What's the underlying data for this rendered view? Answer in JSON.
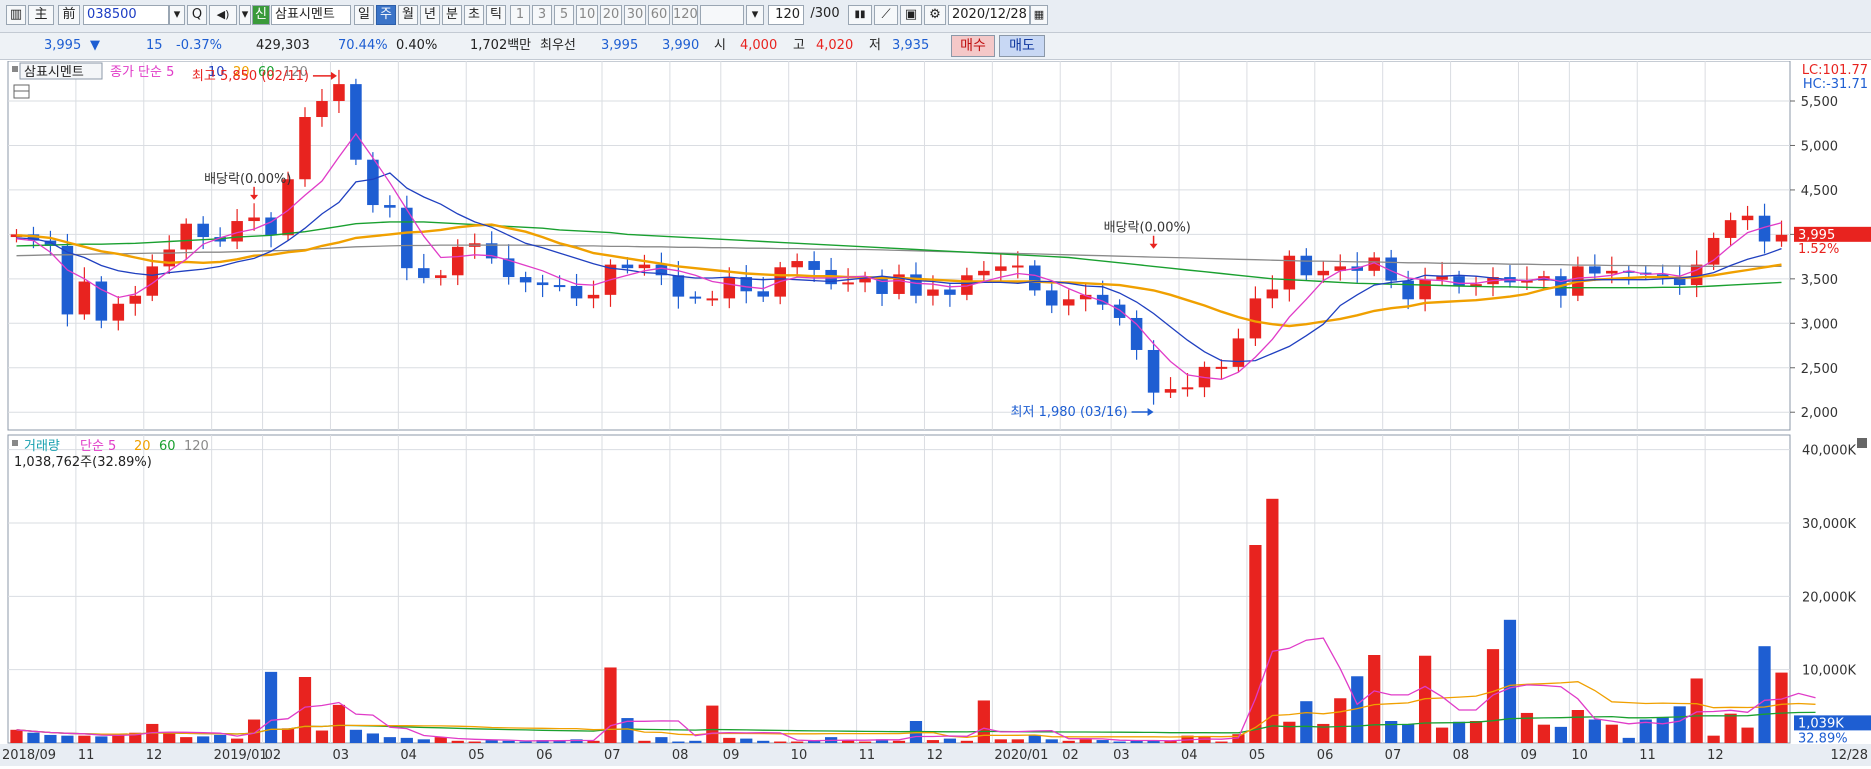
{
  "toolbar": {
    "b_menu": "▥",
    "b_ju": "主",
    "b_jeon": "前",
    "code": "038500",
    "b_search": "Q",
    "b_sound": "◀)",
    "b_new": "신",
    "name": "삼표시멘트",
    "period_day": "일",
    "period_week": "주",
    "period_month": "월",
    "period_year": "년",
    "period_min": "분",
    "period_sec": "초",
    "period_tick": "틱",
    "intervals": [
      "1",
      "3",
      "5",
      "10",
      "20",
      "30",
      "60",
      "120"
    ],
    "count": "120",
    "count_total": "/300",
    "date": "2020/12/28"
  },
  "info": {
    "price": "3,995",
    "change": "15",
    "change_pct": "-0.37%",
    "volume": "429,303",
    "vol_ratio": "70.44%",
    "turnover": "0.40%",
    "amount": "1,702백만",
    "best_label": "최우선",
    "best_ask": "3,995",
    "best_bid": "3,990",
    "open_label": "시",
    "open": "4,000",
    "high_label": "고",
    "high": "4,020",
    "low_label": "저",
    "low": "3,935",
    "buy_label": "매수",
    "sell_label": "매도"
  },
  "colors": {
    "up": "#e8231f",
    "down": "#1e5ed2",
    "ma5": "#e03cc8",
    "ma10": "#2040c0",
    "ma20": "#f0a000",
    "ma60": "#1aa030",
    "ma120": "#8a8a8a"
  },
  "chart_data": [
    {
      "type": "candlestick",
      "title": "삼표시멘트",
      "legend": [
        "종가 단순 5",
        "10",
        "20",
        "60",
        "120"
      ],
      "ylim": [
        1800,
        5950
      ],
      "y_ticks": [
        2000,
        2500,
        3000,
        3500,
        4000,
        4500,
        5000,
        5500
      ],
      "y_tick_labels": [
        "2,000",
        "2,500",
        "3,000",
        "3,500",
        "4,000",
        "4,500",
        "5,000",
        "5,500"
      ],
      "x_labels": [
        "2018/09",
        "11",
        "12",
        "2019/01",
        "02",
        "03",
        "04",
        "05",
        "06",
        "07",
        "08",
        "09",
        "10",
        "11",
        "12",
        "2020/01",
        "02",
        "03",
        "04",
        "05",
        "06",
        "07",
        "08",
        "09",
        "10",
        "11",
        "12",
        "12/28"
      ],
      "last_price_label": "3,995",
      "last_pct_label": "1.52%",
      "lc_label": "LC:101.77",
      "hc_label": "HC:-31.71",
      "annotations": {
        "high": "최고 5,850 (02/11)",
        "low": "최저 1,980 (03/16)",
        "div1": "배당락(0.00%)",
        "div2": "배당락(0.00%)"
      },
      "close": [
        4000,
        3930,
        3870,
        3100,
        3470,
        3030,
        3220,
        3310,
        3640,
        3830,
        4120,
        3970,
        3920,
        4150,
        4190,
        3990,
        4620,
        5320,
        5500,
        5690,
        4840,
        4330,
        4300,
        3620,
        3510,
        3540,
        3860,
        3900,
        3730,
        3520,
        3460,
        3430,
        3420,
        3280,
        3320,
        3660,
        3620,
        3660,
        3540,
        3300,
        3280,
        3280,
        3520,
        3360,
        3300,
        3630,
        3700,
        3600,
        3440,
        3460,
        3520,
        3330,
        3550,
        3310,
        3380,
        3320,
        3540,
        3590,
        3640,
        3650,
        3370,
        3200,
        3270,
        3320,
        3210,
        3060,
        2700,
        2220,
        2260,
        2280,
        2510,
        2510,
        2830,
        3280,
        3380,
        3760,
        3540,
        3590,
        3640,
        3590,
        3740,
        3480,
        3270,
        3490,
        3530,
        3420,
        3440,
        3520,
        3460,
        3480,
        3530,
        3310,
        3640,
        3560,
        3590,
        3570,
        3550,
        3520,
        3430,
        3660,
        3960,
        4160,
        4210,
        3920,
        3995
      ],
      "volume_k": [
        1800,
        1400,
        1100,
        1000,
        1000,
        900,
        1200,
        1400,
        2600,
        1300,
        800,
        900,
        1100,
        600,
        3200,
        9700,
        2000,
        9000,
        1700,
        5200,
        1800,
        1300,
        800,
        700,
        500,
        800,
        300,
        200,
        400,
        300,
        200,
        400,
        300,
        500,
        300,
        10300,
        3400,
        300,
        800,
        200,
        300,
        5100,
        700,
        600,
        300,
        200,
        200,
        300,
        800,
        400,
        200,
        500,
        300,
        3000,
        400,
        600,
        300,
        5800,
        500,
        500,
        1100,
        500,
        300,
        500,
        400,
        200,
        300,
        300,
        300,
        1000,
        800,
        200,
        1200,
        27000,
        33300,
        2900,
        5700,
        2600,
        6100,
        9100,
        12000,
        3000,
        2600,
        11900,
        2100,
        2900,
        3000,
        12800,
        16800,
        4100,
        2500,
        2200,
        4500,
        3200,
        2500,
        700,
        3200,
        3500,
        5000,
        8800,
        1000,
        4000,
        2100,
        13200,
        9600,
        4900,
        1039
      ],
      "ma5": [
        3950,
        3930,
        3800,
        3600,
        3500,
        3380,
        3290,
        3330,
        3450,
        3590,
        3720,
        3890,
        3960,
        4020,
        4060,
        4140,
        4270,
        4440,
        4600,
        4870,
        5130,
        4860,
        4580,
        4280,
        3980,
        3740,
        3750,
        3770,
        3760,
        3710,
        3650,
        3590,
        3510,
        3440,
        3430,
        3490,
        3540,
        3590,
        3620,
        3590,
        3540,
        3470,
        3440,
        3410,
        3390,
        3470,
        3520,
        3510,
        3510,
        3520,
        3530,
        3470,
        3480,
        3450,
        3440,
        3410,
        3420,
        3470,
        3520,
        3560,
        3540,
        3480,
        3390,
        3310,
        3250,
        3150,
        2990,
        2770,
        2570,
        2420,
        2390,
        2370,
        2450,
        2620,
        2820,
        3070,
        3270,
        3480,
        3590,
        3620,
        3680,
        3590,
        3510,
        3490,
        3480,
        3450,
        3450,
        3480,
        3490,
        3480,
        3510,
        3470,
        3510,
        3520,
        3540,
        3590,
        3550,
        3560,
        3530,
        3600,
        3710,
        3870,
        4020,
        4080,
        4130
      ],
      "ma10": [
        3960,
        3950,
        3910,
        3800,
        3740,
        3650,
        3590,
        3560,
        3540,
        3570,
        3590,
        3610,
        3640,
        3690,
        3730,
        3810,
        3930,
        4070,
        4230,
        4360,
        4590,
        4620,
        4690,
        4520,
        4420,
        4340,
        4230,
        4140,
        4080,
        3990,
        3900,
        3850,
        3790,
        3730,
        3670,
        3620,
        3600,
        3570,
        3560,
        3530,
        3510,
        3510,
        3520,
        3500,
        3490,
        3500,
        3490,
        3480,
        3470,
        3490,
        3510,
        3530,
        3510,
        3480,
        3470,
        3450,
        3450,
        3460,
        3460,
        3450,
        3470,
        3470,
        3450,
        3420,
        3410,
        3340,
        3240,
        3110,
        2960,
        2810,
        2680,
        2580,
        2570,
        2580,
        2660,
        2740,
        2860,
        2990,
        3200,
        3320,
        3430,
        3460,
        3480,
        3540,
        3530,
        3540,
        3530,
        3510,
        3490,
        3480,
        3500,
        3470,
        3480,
        3490,
        3490,
        3490,
        3490,
        3500,
        3510,
        3530,
        3570,
        3650,
        3720,
        3770,
        3840
      ],
      "ma20": [
        3990,
        3980,
        3960,
        3910,
        3860,
        3810,
        3780,
        3740,
        3700,
        3680,
        3690,
        3680,
        3690,
        3720,
        3760,
        3770,
        3800,
        3820,
        3870,
        3910,
        3960,
        3980,
        4000,
        4020,
        4030,
        4050,
        4080,
        4100,
        4110,
        4070,
        4030,
        3970,
        3900,
        3850,
        3790,
        3760,
        3730,
        3700,
        3670,
        3640,
        3620,
        3600,
        3580,
        3560,
        3550,
        3540,
        3540,
        3530,
        3530,
        3520,
        3520,
        3510,
        3510,
        3500,
        3490,
        3480,
        3470,
        3470,
        3470,
        3470,
        3470,
        3460,
        3460,
        3450,
        3440,
        3430,
        3400,
        3370,
        3320,
        3260,
        3200,
        3130,
        3070,
        3020,
        2990,
        2970,
        2990,
        3020,
        3050,
        3090,
        3140,
        3170,
        3190,
        3230,
        3240,
        3250,
        3260,
        3280,
        3300,
        3330,
        3380,
        3420,
        3470,
        3490,
        3500,
        3510,
        3520,
        3520,
        3510,
        3520,
        3540,
        3570,
        3600,
        3630,
        3660
      ],
      "ma60": [
        3870,
        3875,
        3880,
        3885,
        3890,
        3890,
        3895,
        3900,
        3910,
        3920,
        3930,
        3940,
        3950,
        3970,
        3980,
        3990,
        4010,
        4030,
        4060,
        4090,
        4120,
        4130,
        4140,
        4140,
        4140,
        4130,
        4120,
        4110,
        4100,
        4090,
        4080,
        4070,
        4050,
        4040,
        4030,
        4020,
        4000,
        3990,
        3980,
        3970,
        3960,
        3950,
        3940,
        3930,
        3920,
        3910,
        3900,
        3890,
        3880,
        3870,
        3860,
        3850,
        3840,
        3830,
        3820,
        3810,
        3800,
        3790,
        3780,
        3770,
        3760,
        3750,
        3740,
        3720,
        3700,
        3680,
        3660,
        3640,
        3620,
        3600,
        3580,
        3560,
        3540,
        3520,
        3500,
        3490,
        3480,
        3470,
        3460,
        3450,
        3445,
        3440,
        3435,
        3430,
        3425,
        3420,
        3415,
        3410,
        3410,
        3405,
        3400,
        3400,
        3400,
        3400,
        3400,
        3400,
        3400,
        3405,
        3405,
        3410,
        3420,
        3430,
        3440,
        3450,
        3460
      ],
      "ma120": [
        3760,
        3765,
        3770,
        3770,
        3775,
        3780,
        3780,
        3785,
        3790,
        3790,
        3795,
        3800,
        3800,
        3805,
        3810,
        3815,
        3820,
        3830,
        3840,
        3850,
        3860,
        3865,
        3870,
        3875,
        3875,
        3880,
        3880,
        3880,
        3880,
        3880,
        3880,
        3875,
        3875,
        3870,
        3870,
        3865,
        3865,
        3860,
        3860,
        3855,
        3855,
        3850,
        3850,
        3845,
        3845,
        3840,
        3840,
        3835,
        3835,
        3830,
        3830,
        3825,
        3820,
        3815,
        3810,
        3805,
        3800,
        3795,
        3790,
        3785,
        3780,
        3775,
        3770,
        3765,
        3760,
        3755,
        3750,
        3745,
        3740,
        3735,
        3730,
        3725,
        3720,
        3715,
        3710,
        3705,
        3700,
        3700,
        3695,
        3690,
        3690,
        3685,
        3680,
        3680,
        3675,
        3675,
        3670,
        3670,
        3665,
        3665,
        3660,
        3660,
        3655,
        3655,
        3650,
        3650,
        3648,
        3646,
        3644,
        3642,
        3640,
        3640,
        3640,
        3640,
        3640
      ]
    },
    {
      "type": "bar",
      "title": "거래량",
      "legend": [
        "단순 5",
        "20",
        "60",
        "120"
      ],
      "info": "1,038,762주(32.89%)",
      "ylim": [
        0,
        42000
      ],
      "y_ticks": [
        10000,
        20000,
        30000,
        40000
      ],
      "y_tick_labels": [
        "10,000K",
        "20,000K",
        "30,000K",
        "40,000K"
      ],
      "last_label": "1,039K",
      "last_pct": "32.89%"
    }
  ]
}
